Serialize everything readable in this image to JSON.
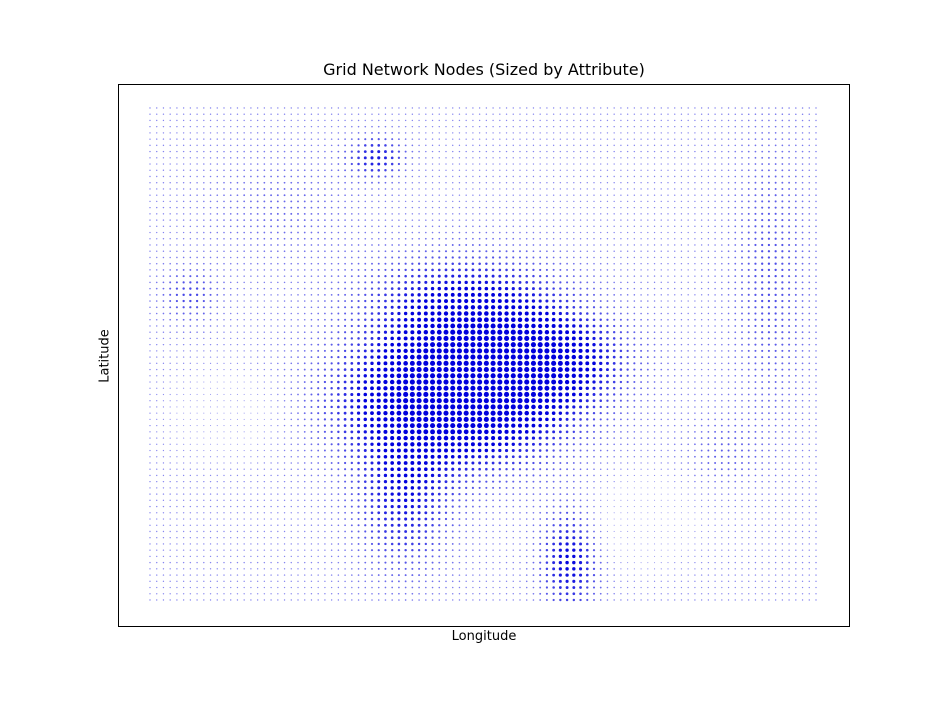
{
  "chart_data": {
    "type": "scatter",
    "title": "Grid Network Nodes (Sized by Attribute)",
    "xlabel": "Longitude",
    "ylabel": "Latitude",
    "axis_ticks_visible": false,
    "grid": false,
    "legend": "none",
    "marker_color": "#0000dd",
    "grid_columns": 100,
    "grid_rows": 80,
    "x_range": [
      0,
      1
    ],
    "y_range": [
      0,
      1
    ],
    "size_attribute_range": [
      0.05,
      1.0
    ],
    "size_field_components": [
      {
        "x": 0.5,
        "y": 0.47,
        "sx": 0.1,
        "sy": 0.11,
        "amp": 0.85
      },
      {
        "x": 0.42,
        "y": 0.4,
        "sx": 0.11,
        "sy": 0.09,
        "amp": 0.5
      },
      {
        "x": 0.62,
        "y": 0.49,
        "sx": 0.07,
        "sy": 0.06,
        "amp": 0.35
      },
      {
        "x": 0.38,
        "y": 0.2,
        "sx": 0.05,
        "sy": 0.1,
        "amp": 0.4
      },
      {
        "x": 0.63,
        "y": 0.08,
        "sx": 0.03,
        "sy": 0.07,
        "amp": 0.5
      },
      {
        "x": 0.34,
        "y": 0.9,
        "sx": 0.03,
        "sy": 0.03,
        "amp": 0.4
      },
      {
        "x": 0.06,
        "y": 0.62,
        "sx": 0.03,
        "sy": 0.04,
        "amp": 0.25
      },
      {
        "x": 0.93,
        "y": 0.65,
        "sx": 0.04,
        "sy": 0.2,
        "amp": 0.22
      },
      {
        "x": 0.45,
        "y": 0.62,
        "sx": 0.1,
        "sy": 0.06,
        "amp": 0.25
      },
      {
        "x": 0.12,
        "y": 0.38,
        "sx": 0.06,
        "sy": 0.06,
        "amp": -0.15
      },
      {
        "x": 0.74,
        "y": 0.16,
        "sx": 0.05,
        "sy": 0.06,
        "amp": -0.2
      },
      {
        "x": 0.86,
        "y": 0.3,
        "sx": 0.04,
        "sy": 0.05,
        "amp": 0.15
      },
      {
        "x": 0.2,
        "y": 0.8,
        "sx": 0.08,
        "sy": 0.08,
        "amp": 0.12
      }
    ]
  }
}
